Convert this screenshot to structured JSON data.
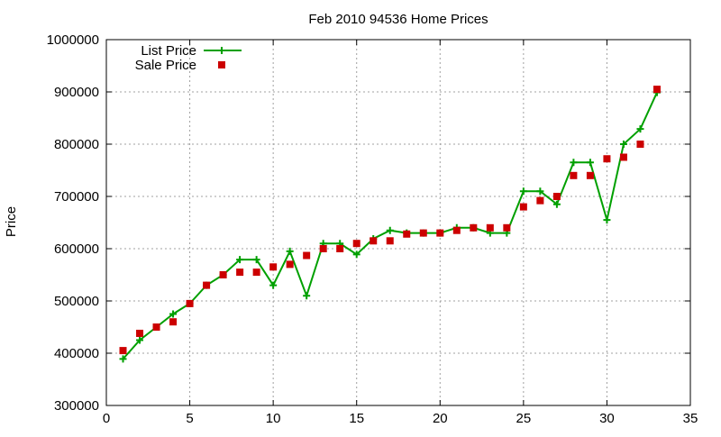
{
  "chart_data": {
    "type": "line",
    "title": "Feb 2010 94536 Home Prices",
    "xlabel": "",
    "ylabel": "Price",
    "xlim": [
      0,
      35
    ],
    "ylim": [
      300000,
      1000000
    ],
    "xticks": [
      0,
      5,
      10,
      15,
      20,
      25,
      30,
      35
    ],
    "yticks": [
      300000,
      400000,
      500000,
      600000,
      700000,
      800000,
      900000,
      1000000
    ],
    "grid": true,
    "legend_position": "top-left",
    "series": [
      {
        "name": "List Price",
        "style": "line-with-plus-markers",
        "color": "#00a000",
        "x": [
          1,
          2,
          3,
          4,
          5,
          6,
          7,
          8,
          9,
          10,
          11,
          12,
          13,
          14,
          15,
          16,
          17,
          18,
          19,
          20,
          21,
          22,
          23,
          24,
          25,
          26,
          27,
          28,
          29,
          30,
          31,
          32,
          33
        ],
        "values": [
          389000,
          425000,
          450000,
          475000,
          495000,
          530000,
          550000,
          579000,
          579000,
          530000,
          595000,
          510000,
          610000,
          610000,
          589000,
          619000,
          635000,
          630000,
          630000,
          630000,
          640000,
          640000,
          630000,
          630000,
          710000,
          710000,
          685000,
          765000,
          765000,
          655000,
          800000,
          829000,
          899000
        ]
      },
      {
        "name": "Sale Price",
        "style": "square-markers",
        "color": "#cc0000",
        "x": [
          1,
          2,
          3,
          4,
          5,
          6,
          7,
          8,
          9,
          10,
          11,
          12,
          13,
          14,
          15,
          16,
          17,
          18,
          19,
          20,
          21,
          22,
          23,
          24,
          25,
          26,
          27,
          28,
          29,
          30,
          31,
          32,
          33
        ],
        "values": [
          405000,
          438000,
          450000,
          460000,
          495000,
          530000,
          550000,
          555000,
          555000,
          565000,
          570000,
          587000,
          600000,
          600000,
          610000,
          615000,
          615000,
          628000,
          630000,
          630000,
          635000,
          640000,
          640000,
          640000,
          680000,
          692000,
          700000,
          740000,
          740000,
          772000,
          775000,
          800000,
          905000
        ]
      }
    ]
  }
}
